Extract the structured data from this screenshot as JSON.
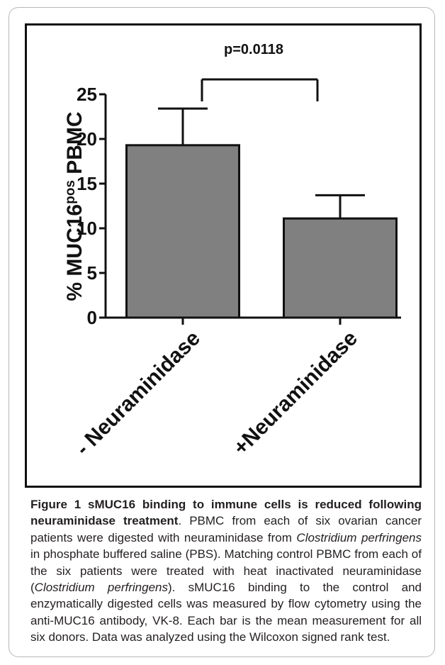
{
  "chart_data": {
    "type": "bar",
    "categories": [
      "- Neuraminidase",
      "+Neuraminidase"
    ],
    "values": [
      19.3,
      11.1
    ],
    "error_upper": [
      23.4,
      13.7
    ],
    "ylim": [
      0,
      25
    ],
    "yticks": [
      0,
      5,
      10,
      15,
      20,
      25
    ],
    "ylabel": {
      "main": "% MUC16",
      "superscript": "pos",
      "suffix": " PBMC"
    },
    "annotation": "p=0.0118",
    "grid": false,
    "legend": "none",
    "colors": {
      "bar": "#808080",
      "axis": "#111111",
      "text": "#111111"
    }
  },
  "caption": {
    "bold": "Figure 1 sMUC16 binding to immune cells is reduced following neuraminidase treatment",
    "segments": [
      {
        "text": ". PBMC from each of six ovarian cancer patients were digested with neuraminidase from ",
        "style": "normal"
      },
      {
        "text": "Clostridium perfringens",
        "style": "italic"
      },
      {
        "text": " in phosphate buffered saline (PBS). Matching control PBMC from each of the six patients were treated with heat inactivated neuraminidase (",
        "style": "normal"
      },
      {
        "text": "Clostridium perfringens",
        "style": "italic"
      },
      {
        "text": "). sMUC16 binding to the control and enzymatically digested cells was measured by flow cytometry using the anti-MUC16 antibody, VK-8. Each bar is the mean measurement for all six donors. Data was analyzed using the Wilcoxon signed rank test.",
        "style": "normal"
      }
    ]
  }
}
